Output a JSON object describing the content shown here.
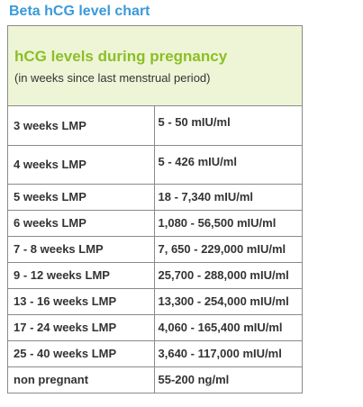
{
  "page": {
    "title": "Beta hCG level chart"
  },
  "chart": {
    "header_title": "hCG levels during pregnancy",
    "header_subtitle": "(in weeks since last menstrual period)",
    "rows": [
      {
        "weeks": "3 weeks LMP",
        "level": "5 - 50 mIU/ml"
      },
      {
        "weeks": "4 weeks LMP",
        "level": "5 - 426 mIU/ml"
      },
      {
        "weeks": "5 weeks LMP",
        "level": "18 - 7,340 mIU/ml"
      },
      {
        "weeks": "6 weeks LMP",
        "level": "1,080 - 56,500 mIU/ml"
      },
      {
        "weeks": "7 - 8 weeks LMP",
        "level": "7, 650 - 229,000 mIU/ml"
      },
      {
        "weeks": "9 - 12 weeks LMP",
        "level": "25,700 - 288,000 mIU/ml"
      },
      {
        "weeks": "13 - 16 weeks LMP",
        "level": "13,300 - 254,000 mIU/ml"
      },
      {
        "weeks": "17 - 24 weeks LMP",
        "level": "4,060 - 165,400 mIU/ml"
      },
      {
        "weeks": "25 - 40 weeks LMP",
        "level": "3,640 - 117,000 mIU/ml"
      },
      {
        "weeks": "non pregnant",
        "level": "55-200 ng/ml"
      }
    ]
  },
  "colors": {
    "title": "#3a9ad9",
    "header_title": "#8cbf26",
    "header_background": "#eef5d6",
    "border": "#8a8a8a",
    "text": "#333333"
  }
}
